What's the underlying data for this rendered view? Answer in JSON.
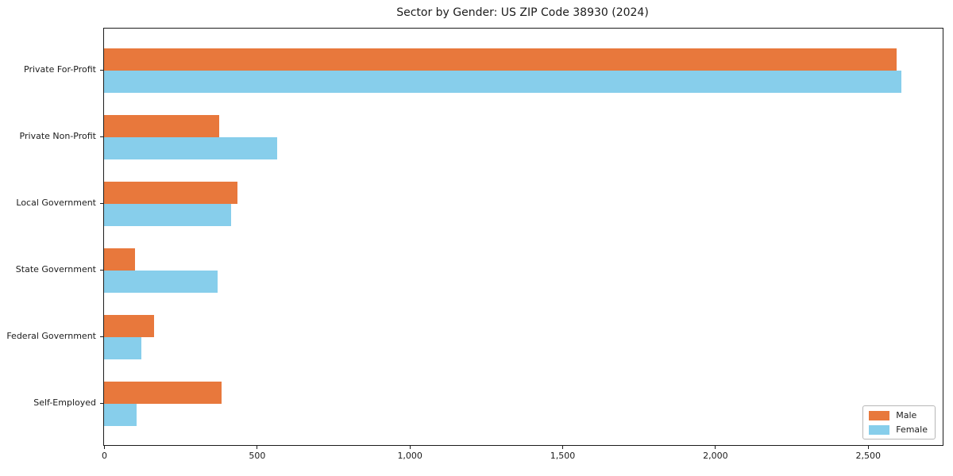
{
  "chart_data": {
    "type": "bar",
    "orientation": "horizontal",
    "title": "Sector by Gender: US ZIP Code 38930 (2024)",
    "categories": [
      "Private For-Profit",
      "Private Non-Profit",
      "Local Government",
      "State Government",
      "Federal Government",
      "Self-Employed"
    ],
    "series": [
      {
        "name": "Male",
        "color": "#E8783C",
        "values": [
          2595,
          378,
          436,
          102,
          163,
          386
        ]
      },
      {
        "name": "Female",
        "color": "#87CEEB",
        "values": [
          2610,
          566,
          417,
          372,
          122,
          107
        ]
      }
    ],
    "xlabel": "",
    "ylabel": "",
    "xlim": [
      0,
      2745
    ],
    "x_ticks": [
      0,
      500,
      1000,
      1500,
      2000,
      2500
    ],
    "x_tick_labels": [
      "0",
      "500",
      "1,000",
      "1,500",
      "2,000",
      "2,500"
    ],
    "grid": false,
    "legend_position": "lower right",
    "background_color": "#ffffff",
    "text_color": "#1c1c1c"
  }
}
